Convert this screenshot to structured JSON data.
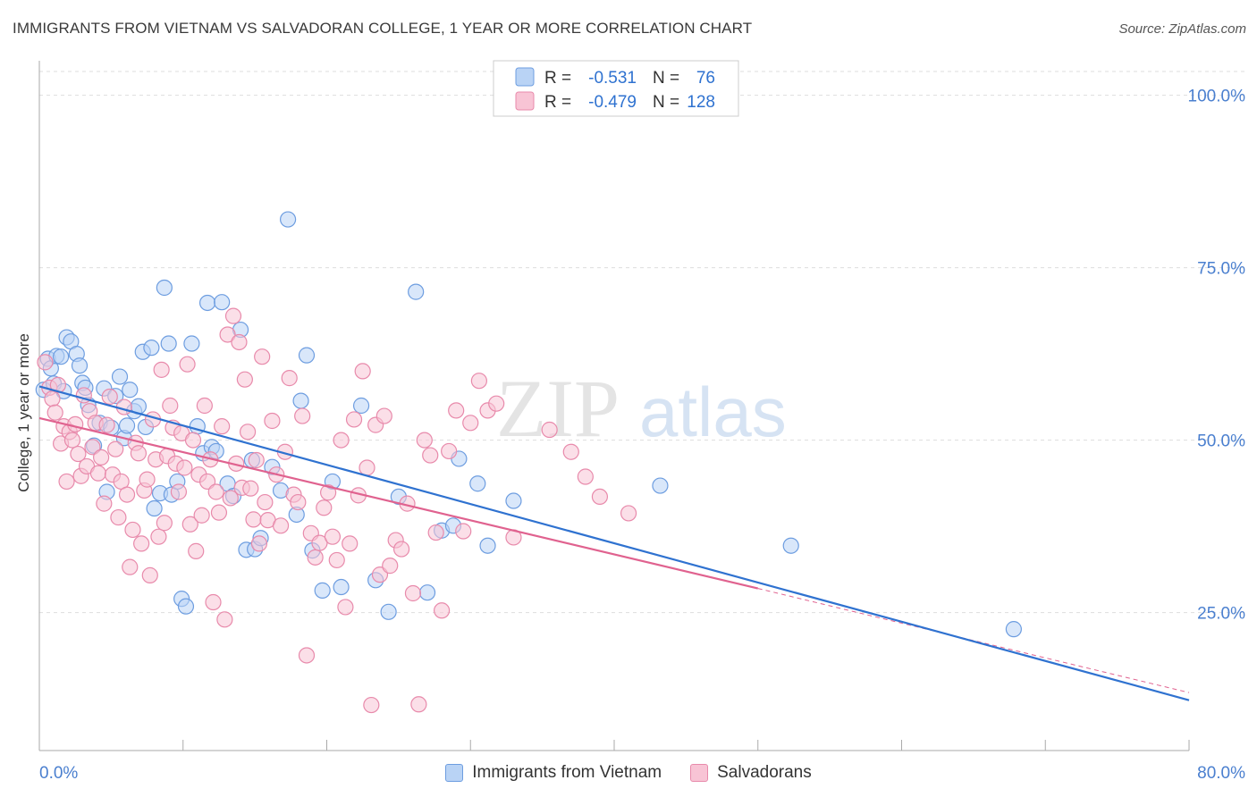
{
  "header": {
    "title": "IMMIGRANTS FROM VIETNAM VS SALVADORAN COLLEGE, 1 YEAR OR MORE CORRELATION CHART",
    "source": "Source: ZipAtlas.com"
  },
  "watermark": {
    "zip": "ZIP",
    "atlas": "atlas"
  },
  "legend_top": {
    "rows": [
      {
        "r_label": "R =",
        "r_value": "-0.531",
        "n_label": "N =",
        "n_value": "76"
      },
      {
        "r_label": "R =",
        "r_value": "-0.479",
        "n_label": "N =",
        "n_value": "128"
      }
    ]
  },
  "colors": {
    "blue_fill": "#b9d3f5",
    "blue_stroke": "#6d9de0",
    "blue_line": "#2f72d0",
    "pink_fill": "#f8c4d5",
    "pink_stroke": "#e88aab",
    "pink_line": "#e0628f",
    "axis_label": "#4a7fcf",
    "grid": "#dddddd"
  },
  "chart_data": {
    "type": "scatter",
    "title": "IMMIGRANTS FROM VIETNAM VS SALVADORAN COLLEGE, 1 YEAR OR MORE CORRELATION CHART",
    "xlabel": "",
    "ylabel": "College, 1 year or more",
    "xlim": [
      0,
      80
    ],
    "ylim": [
      5,
      105
    ],
    "x_tick_labels": [
      "0.0%",
      "80.0%"
    ],
    "y_ticks": [
      25,
      50,
      75,
      100
    ],
    "y_tick_labels": [
      "25.0%",
      "50.0%",
      "75.0%",
      "100.0%"
    ],
    "grid": true,
    "legend_position": "top-center",
    "series": [
      {
        "name": "Immigrants from Vietnam",
        "color": "#6d9de0",
        "r": -0.531,
        "n": 76,
        "trend": {
          "x": [
            0,
            80
          ],
          "y": [
            57.8,
            12.3
          ],
          "dashed_from_x": 80
        },
        "x": [
          0.3,
          0.6,
          0.8,
          1.0,
          1.2,
          1.5,
          1.7,
          1.9,
          2.2,
          2.6,
          2.8,
          3.0,
          3.2,
          3.4,
          3.8,
          4.2,
          4.5,
          4.7,
          5.0,
          5.3,
          5.6,
          5.9,
          6.1,
          6.3,
          6.6,
          6.9,
          7.2,
          7.4,
          7.8,
          8.0,
          8.4,
          8.7,
          9.0,
          9.2,
          9.6,
          9.9,
          10.2,
          10.6,
          11.0,
          11.4,
          11.7,
          12.0,
          12.3,
          12.7,
          13.1,
          13.5,
          14.0,
          14.4,
          14.8,
          15.0,
          15.4,
          16.2,
          16.8,
          17.3,
          17.9,
          18.2,
          18.6,
          19.0,
          19.7,
          20.4,
          21.0,
          22.4,
          23.4,
          24.3,
          25.0,
          26.2,
          27.0,
          28.0,
          28.8,
          29.2,
          30.5,
          31.2,
          33.0,
          43.2,
          52.3,
          67.8
        ],
        "y": [
          57.3,
          61.8,
          60.4,
          58.2,
          62.2,
          62.1,
          57.1,
          64.9,
          64.3,
          62.5,
          60.8,
          58.3,
          57.6,
          55.1,
          49.2,
          52.5,
          57.5,
          42.5,
          51.8,
          56.4,
          59.2,
          50.3,
          52.1,
          57.3,
          54.2,
          54.9,
          62.8,
          51.9,
          63.4,
          40.1,
          42.3,
          72.1,
          64.0,
          42.1,
          44.0,
          27.0,
          25.9,
          64.0,
          52.0,
          48.1,
          69.9,
          49.0,
          48.4,
          70.0,
          43.7,
          41.9,
          66.0,
          34.1,
          47.1,
          34.2,
          35.8,
          46.1,
          42.7,
          82.0,
          39.2,
          55.7,
          62.3,
          34.0,
          28.2,
          44.0,
          28.7,
          55.0,
          29.7,
          25.1,
          41.8,
          71.5,
          27.9,
          36.9,
          37.6,
          47.3,
          43.7,
          34.7,
          41.2,
          43.4,
          34.7,
          22.6
        ]
      },
      {
        "name": "Salvadorans",
        "color": "#e88aab",
        "r": -0.479,
        "n": 128,
        "trend": {
          "x": [
            0,
            50
          ],
          "y": [
            53.2,
            28.5
          ],
          "dashed_to_x": 80,
          "dashed_end_y": 13.4
        },
        "x": [
          0.4,
          0.7,
          0.9,
          1.1,
          1.3,
          1.5,
          1.7,
          1.9,
          2.1,
          2.3,
          2.5,
          2.7,
          2.9,
          3.1,
          3.3,
          3.5,
          3.7,
          3.9,
          4.1,
          4.3,
          4.5,
          4.7,
          4.9,
          5.1,
          5.3,
          5.5,
          5.7,
          5.9,
          6.1,
          6.3,
          6.5,
          6.7,
          6.9,
          7.1,
          7.3,
          7.5,
          7.7,
          7.9,
          8.1,
          8.3,
          8.5,
          8.7,
          8.9,
          9.1,
          9.3,
          9.5,
          9.7,
          9.9,
          10.1,
          10.3,
          10.5,
          10.7,
          10.9,
          11.1,
          11.3,
          11.5,
          11.7,
          11.9,
          12.1,
          12.3,
          12.5,
          12.7,
          12.9,
          13.1,
          13.3,
          13.5,
          13.7,
          13.9,
          14.1,
          14.3,
          14.5,
          14.7,
          14.9,
          15.1,
          15.3,
          15.5,
          15.7,
          15.9,
          16.2,
          16.5,
          16.8,
          17.1,
          17.4,
          17.7,
          18.0,
          18.3,
          18.6,
          18.9,
          19.2,
          19.5,
          19.8,
          20.1,
          20.4,
          20.7,
          21.0,
          21.3,
          21.6,
          21.9,
          22.2,
          22.5,
          22.8,
          23.1,
          23.4,
          23.7,
          24.0,
          24.4,
          24.8,
          25.2,
          25.6,
          26.0,
          26.4,
          26.8,
          27.2,
          27.6,
          28.0,
          28.5,
          29.0,
          29.5,
          30.0,
          30.6,
          31.2,
          31.8,
          33.0,
          35.5,
          37.0,
          38.0,
          39.0,
          41.0
        ],
        "y": [
          61.3,
          57.6,
          56.0,
          54.0,
          58.0,
          49.5,
          52.0,
          44.0,
          51.2,
          50.0,
          52.3,
          48.0,
          44.8,
          56.5,
          46.2,
          54.2,
          49.0,
          52.5,
          45.2,
          47.5,
          40.8,
          52.2,
          56.3,
          45.0,
          48.7,
          38.8,
          44.0,
          54.8,
          42.1,
          31.6,
          37.0,
          49.6,
          48.1,
          35.0,
          42.7,
          44.3,
          30.4,
          53.0,
          47.2,
          36.0,
          60.2,
          38.0,
          47.7,
          55.0,
          51.8,
          46.6,
          42.5,
          51.0,
          46.0,
          61.0,
          37.8,
          50.0,
          33.9,
          45.0,
          39.1,
          55.0,
          44.0,
          47.2,
          26.5,
          42.5,
          39.5,
          52.0,
          24.0,
          65.3,
          41.6,
          68.0,
          46.6,
          64.2,
          43.1,
          58.8,
          51.2,
          43.0,
          38.5,
          47.1,
          35.0,
          62.1,
          41.0,
          38.4,
          52.8,
          45.0,
          37.6,
          48.3,
          59.0,
          42.1,
          41.0,
          53.5,
          18.8,
          36.5,
          33.0,
          35.1,
          40.2,
          42.4,
          36.0,
          32.6,
          50.0,
          25.8,
          35.0,
          53.0,
          42.0,
          60.0,
          46.0,
          11.6,
          52.2,
          30.5,
          53.5,
          31.8,
          35.5,
          34.2,
          40.8,
          27.8,
          11.7,
          50.0,
          47.8,
          36.6,
          25.3,
          48.4,
          54.3,
          36.8,
          52.5,
          58.6,
          54.3,
          55.3,
          35.9,
          51.5,
          48.3,
          44.7,
          41.8,
          39.4
        ]
      }
    ]
  }
}
